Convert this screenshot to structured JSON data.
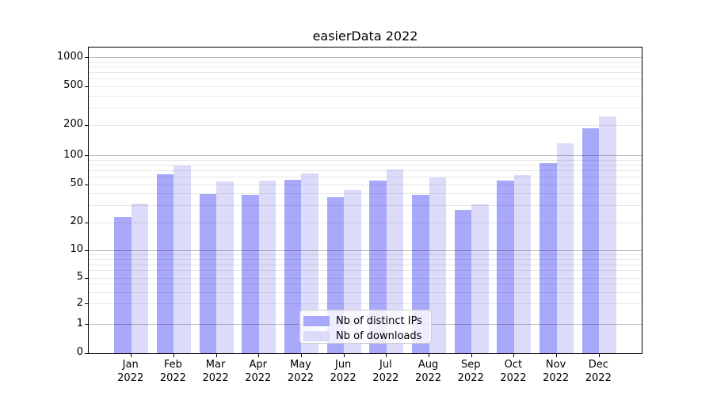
{
  "figure": {
    "title": "easierData 2022"
  },
  "axis_colors": {
    "spine": "#000000",
    "grid_major": "#b3b3b3",
    "grid_minor": "#e8e8e8",
    "text": "#000000"
  },
  "chart_data": {
    "type": "bar",
    "title": "easierData 2022",
    "categories": [
      "Jan",
      "Feb",
      "Mar",
      "Apr",
      "May",
      "Jun",
      "Jul",
      "Aug",
      "Sep",
      "Oct",
      "Nov",
      "Dec"
    ],
    "category_year": "2022",
    "series": [
      {
        "name": "Nb of distinct IPs",
        "color": "#a9a9fb",
        "values": [
          23,
          64,
          40,
          39,
          56,
          37,
          55,
          39,
          27,
          55,
          84,
          187
        ]
      },
      {
        "name": "Nb of downloads",
        "color": "#dcdcfa",
        "values": [
          32,
          79,
          54,
          55,
          66,
          44,
          72,
          60,
          31,
          63,
          133,
          248
        ]
      }
    ],
    "xlabel": "",
    "ylabel": "",
    "yscale": "symlog",
    "yticks": [
      0,
      1,
      2,
      5,
      10,
      20,
      50,
      100,
      200,
      500,
      1000
    ],
    "ylim": [
      0,
      1270
    ],
    "grid": true,
    "legend_position": "lower center"
  }
}
